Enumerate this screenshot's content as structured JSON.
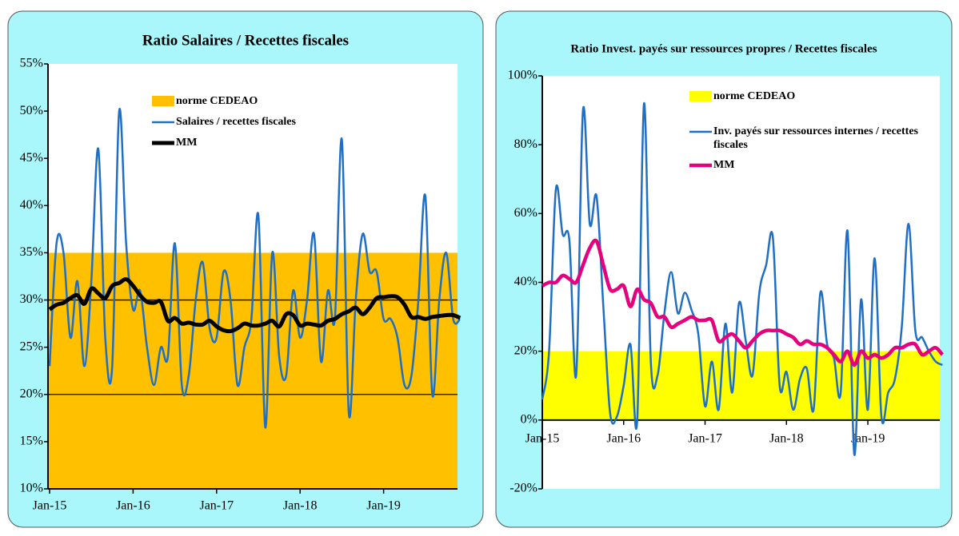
{
  "chart_data": [
    {
      "type": "line",
      "title": "Ratio Salaires / Recettes fiscales",
      "categories": [
        "Jan-15",
        null,
        null,
        null,
        null,
        null,
        null,
        null,
        null,
        null,
        null,
        null,
        "Jan-16",
        null,
        null,
        null,
        null,
        null,
        null,
        null,
        null,
        null,
        null,
        null,
        "Jan-17",
        null,
        null,
        null,
        null,
        null,
        null,
        null,
        null,
        null,
        null,
        null,
        "Jan-18",
        null,
        null,
        null,
        null,
        null,
        null,
        null,
        null,
        null,
        null,
        null,
        "Jan-19",
        null,
        null,
        null,
        null,
        null,
        null,
        null,
        null,
        null,
        null,
        null
      ],
      "series": [
        {
          "name": "Salaires / recettes fiscales",
          "color": "#1f6fc5",
          "values": [
            23,
            36,
            35,
            26,
            32,
            23,
            32,
            46,
            26,
            23,
            50,
            36,
            29,
            31,
            25,
            21,
            25,
            24,
            36,
            21,
            22,
            30,
            34,
            27,
            26,
            33,
            30,
            21,
            25,
            28,
            39,
            16.5,
            35,
            24,
            22,
            31,
            26,
            30,
            37,
            23.5,
            31,
            28,
            47,
            18,
            30,
            37,
            33,
            33,
            28,
            28,
            26,
            21,
            22,
            30,
            41,
            20,
            30,
            35,
            28,
            28
          ]
        },
        {
          "name": "MM",
          "color": "#000000",
          "values": [
            29,
            29.5,
            29.7,
            30.2,
            30.5,
            29.6,
            31.2,
            30.7,
            30.2,
            31.5,
            31.8,
            32.2,
            31.5,
            30.5,
            29.8,
            29.7,
            29.8,
            27.8,
            28.1,
            27.5,
            27.6,
            27.4,
            27.4,
            27.8,
            27.2,
            26.8,
            26.7,
            27,
            27.5,
            27.3,
            27.3,
            27.5,
            27.8,
            27.2,
            28.5,
            28.4,
            27.3,
            27.5,
            27.4,
            27.3,
            27.8,
            28,
            28.5,
            28.8,
            29.2,
            28.5,
            29.2,
            30.2,
            30.3,
            30.4,
            30.3,
            29.5,
            28.2,
            28.2,
            28,
            28.2,
            28.3,
            28.4,
            28.4,
            28.1
          ]
        }
      ],
      "band": {
        "name": "norme CEDEAO",
        "color": "#ffc000",
        "from": 10,
        "to": 35
      },
      "hlines": [
        20,
        30
      ],
      "ylim": [
        10,
        55
      ],
      "yticks": [
        {
          "value": 10,
          "label": "10%"
        },
        {
          "value": 15,
          "label": "15%"
        },
        {
          "value": 20,
          "label": "20%"
        },
        {
          "value": 25,
          "label": "25%"
        },
        {
          "value": 30,
          "label": "30%"
        },
        {
          "value": 35,
          "label": "35%"
        },
        {
          "value": 40,
          "label": "40%"
        },
        {
          "value": 45,
          "label": "45%"
        },
        {
          "value": 50,
          "label": "50%"
        },
        {
          "value": 55,
          "label": "55%"
        }
      ]
    },
    {
      "type": "line",
      "title": "Ratio Invest. payés sur ressources propres / Recettes fiscales",
      "categories": [
        "Jan-15",
        null,
        null,
        null,
        null,
        null,
        null,
        null,
        null,
        null,
        null,
        null,
        "Jan-16",
        null,
        null,
        null,
        null,
        null,
        null,
        null,
        null,
        null,
        null,
        null,
        "Jan-17",
        null,
        null,
        null,
        null,
        null,
        null,
        null,
        null,
        null,
        null,
        null,
        "Jan-18",
        null,
        null,
        null,
        null,
        null,
        null,
        null,
        null,
        null,
        null,
        null,
        "Jan-19",
        null,
        null,
        null,
        null,
        null,
        null,
        null,
        null,
        null,
        null,
        null
      ],
      "series": [
        {
          "name": "Inv. payés sur ressources internes / recettes fiscales",
          "color": "#1f6fc5",
          "values": [
            6,
            20,
            67,
            54,
            52,
            13,
            90,
            57,
            65,
            33,
            2,
            1,
            10,
            22,
            0,
            92,
            17,
            13,
            31,
            43,
            31,
            37,
            32,
            25,
            4,
            17,
            3,
            28,
            8,
            34,
            23,
            13,
            37,
            45,
            53,
            10,
            14,
            3,
            12,
            15,
            3,
            37,
            22,
            18,
            8,
            55,
            -10,
            35,
            3,
            47,
            1,
            8,
            12,
            27,
            57,
            26,
            24,
            20,
            17,
            16
          ]
        },
        {
          "name": "MM",
          "color": "#e6007e",
          "values": [
            39,
            40,
            40,
            42,
            41,
            40,
            45,
            50,
            52,
            45,
            38,
            38,
            39,
            33,
            38,
            35,
            34,
            30,
            30,
            27,
            28,
            29,
            30,
            29,
            29,
            29,
            23,
            24,
            25,
            23,
            21,
            23,
            25,
            26,
            26,
            26,
            25,
            24,
            22,
            23,
            22,
            22,
            21,
            19,
            17,
            20,
            16,
            20,
            18,
            19,
            18,
            19,
            21,
            21,
            22,
            22,
            19,
            20,
            21,
            19
          ]
        }
      ],
      "band": {
        "name": "norme CEDEAO",
        "color": "#ffff00",
        "from": 0,
        "to": 20
      },
      "ylim": [
        -20,
        100
      ],
      "yticks": [
        {
          "value": -20,
          "label": "-20%"
        },
        {
          "value": 0,
          "label": "0%"
        },
        {
          "value": 20,
          "label": "20%"
        },
        {
          "value": 40,
          "label": "40%"
        },
        {
          "value": 60,
          "label": "60%"
        },
        {
          "value": 80,
          "label": "80%"
        },
        {
          "value": 100,
          "label": "100%"
        }
      ]
    }
  ]
}
